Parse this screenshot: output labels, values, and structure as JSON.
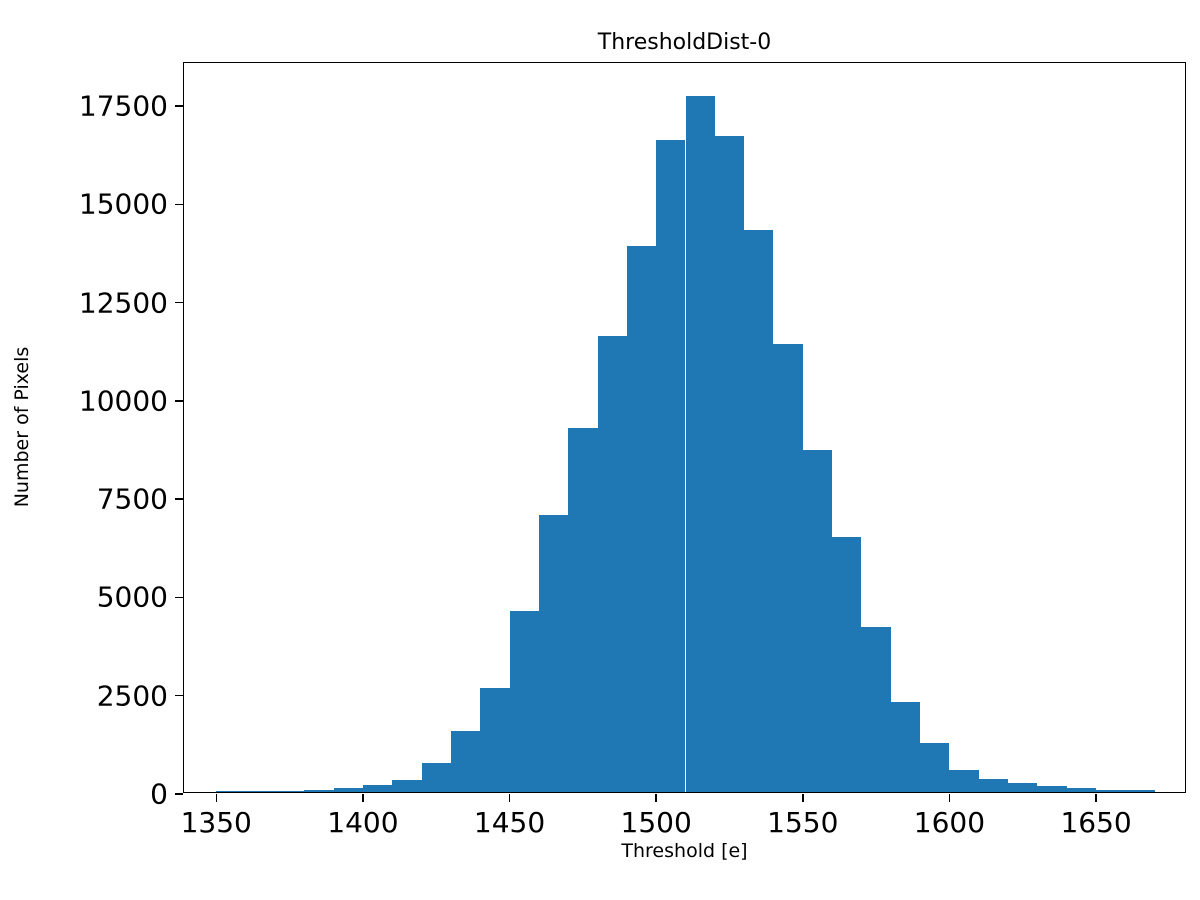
{
  "chart_data": {
    "type": "bar",
    "title": "ThresholdDist-0",
    "xlabel": "Threshold [e]",
    "ylabel": "Number of Pixels",
    "bar_color": "#1f77b4",
    "grid": false,
    "legend": false,
    "xlim": [
      1339,
      1681
    ],
    "ylim": [
      0,
      18600
    ],
    "xticks": [
      1350,
      1400,
      1450,
      1500,
      1550,
      1600,
      1650
    ],
    "yticks": [
      0,
      2500,
      5000,
      7500,
      10000,
      12500,
      15000,
      17500
    ],
    "bin_width": 10,
    "bin_starts": [
      1350,
      1360,
      1370,
      1380,
      1390,
      1400,
      1410,
      1420,
      1430,
      1440,
      1450,
      1460,
      1470,
      1480,
      1490,
      1500,
      1510,
      1520,
      1530,
      1540,
      1550,
      1560,
      1570,
      1580,
      1590,
      1600,
      1610,
      1620,
      1630,
      1640,
      1650,
      1660
    ],
    "values": [
      20,
      25,
      30,
      45,
      90,
      170,
      300,
      750,
      1550,
      2650,
      4600,
      7050,
      9250,
      11600,
      13900,
      16600,
      17700,
      16700,
      14300,
      11400,
      8700,
      6500,
      4200,
      2300,
      1250,
      550,
      320,
      240,
      160,
      110,
      60,
      50
    ]
  }
}
